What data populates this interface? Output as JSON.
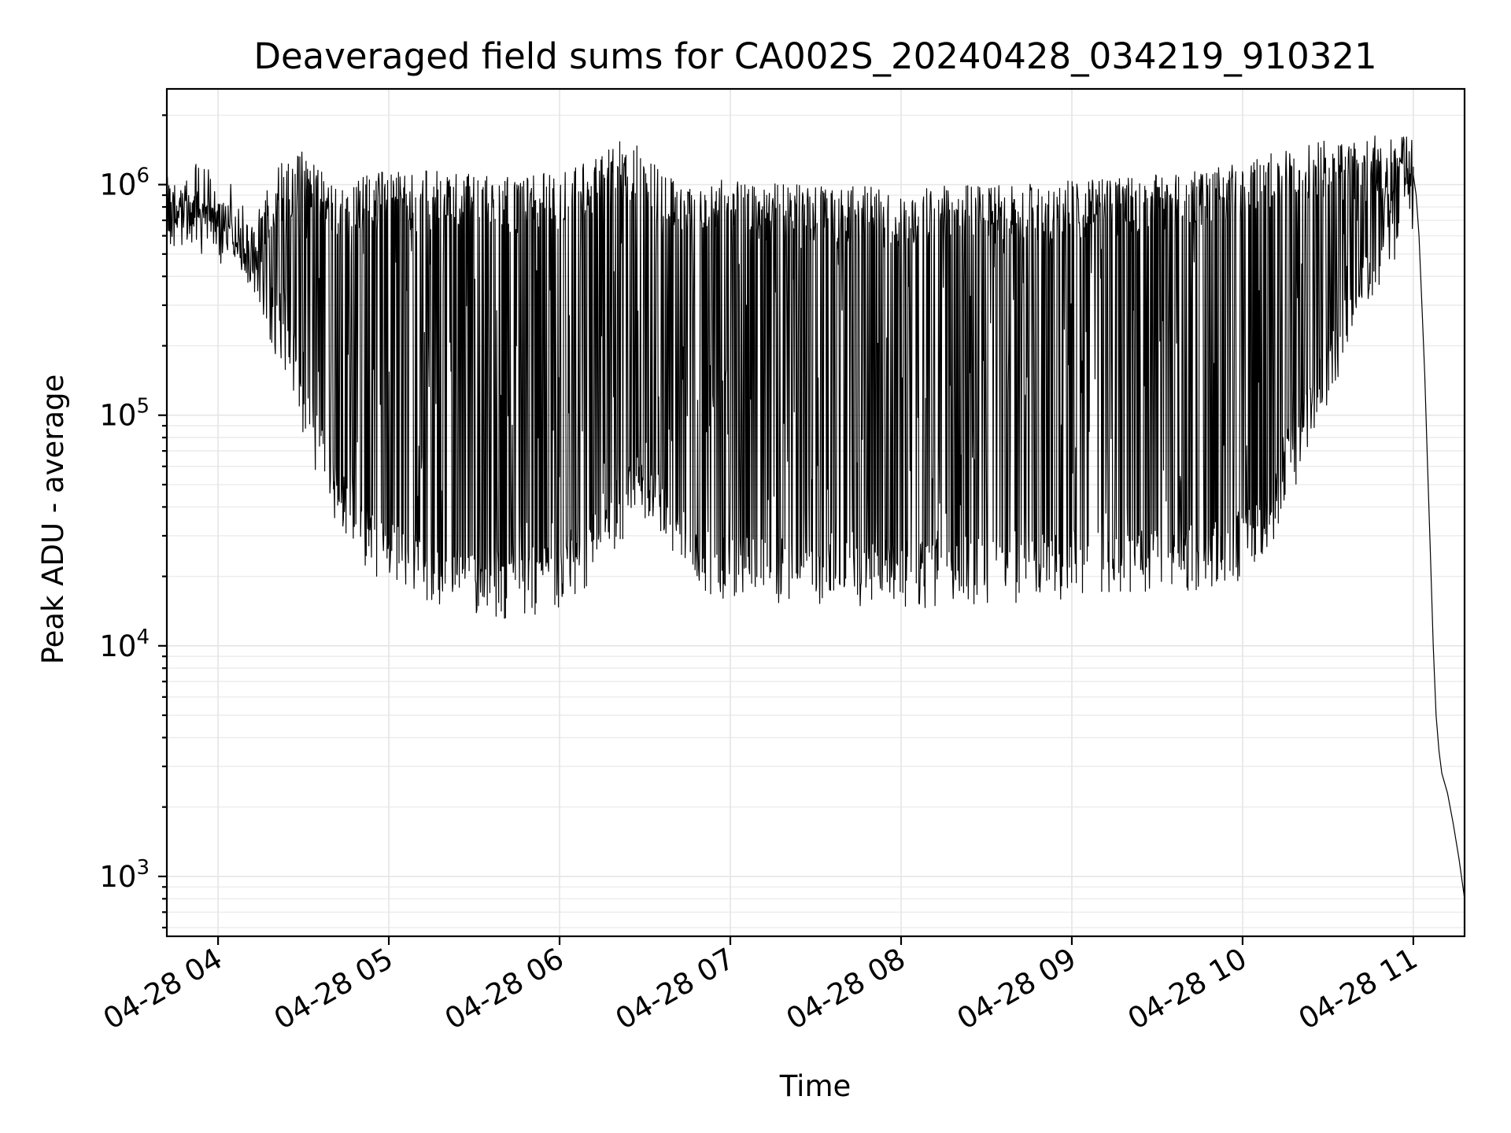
{
  "chart_data": {
    "type": "line",
    "title": "Deaveraged field sums for CA002S_20240428_034219_910321",
    "xlabel": "Time",
    "ylabel": "Peak ADU - average",
    "yscale": "log",
    "ylim": [
      550,
      2600000
    ],
    "xlim": [
      "2024-04-28T03:42",
      "2024-04-28T11:18"
    ],
    "grid": true,
    "grid_minor": true,
    "legend": "none",
    "x_ticks": [
      {
        "t": "2024-04-28T04:00",
        "label": "04-28 04"
      },
      {
        "t": "2024-04-28T05:00",
        "label": "04-28 05"
      },
      {
        "t": "2024-04-28T06:00",
        "label": "04-28 06"
      },
      {
        "t": "2024-04-28T07:00",
        "label": "04-28 07"
      },
      {
        "t": "2024-04-28T08:00",
        "label": "04-28 08"
      },
      {
        "t": "2024-04-28T09:00",
        "label": "04-28 09"
      },
      {
        "t": "2024-04-28T10:00",
        "label": "04-28 10"
      },
      {
        "t": "2024-04-28T11:00",
        "label": "04-28 11"
      }
    ],
    "y_ticks": [
      {
        "value": 1000,
        "base": "10",
        "exp": "3"
      },
      {
        "value": 10000,
        "base": "10",
        "exp": "4"
      },
      {
        "value": 100000,
        "base": "10",
        "exp": "5"
      },
      {
        "value": 1000000,
        "base": "10",
        "exp": "6"
      }
    ],
    "line_color": "#000000",
    "series": [
      {
        "envelope": {
          "x": [
            "2024-04-28T03:42",
            "2024-04-28T03:50",
            "2024-04-28T04:00",
            "2024-04-28T04:05",
            "2024-04-28T04:10",
            "2024-04-28T04:15",
            "2024-04-28T04:20",
            "2024-04-28T04:25",
            "2024-04-28T04:30",
            "2024-04-28T04:35",
            "2024-04-28T04:40",
            "2024-04-28T04:45",
            "2024-04-28T04:50",
            "2024-04-28T04:55",
            "2024-04-28T05:00",
            "2024-04-28T05:10",
            "2024-04-28T05:20",
            "2024-04-28T05:30",
            "2024-04-28T05:40",
            "2024-04-28T05:50",
            "2024-04-28T06:00",
            "2024-04-28T06:10",
            "2024-04-28T06:20",
            "2024-04-28T06:30",
            "2024-04-28T06:40",
            "2024-04-28T06:50",
            "2024-04-28T07:00",
            "2024-04-28T07:20",
            "2024-04-28T07:40",
            "2024-04-28T08:00",
            "2024-04-28T08:20",
            "2024-04-28T08:40",
            "2024-04-28T09:00",
            "2024-04-28T09:20",
            "2024-04-28T09:40",
            "2024-04-28T10:00",
            "2024-04-28T10:10",
            "2024-04-28T10:20",
            "2024-04-28T10:30",
            "2024-04-28T10:40",
            "2024-04-28T10:50",
            "2024-04-28T11:00"
          ],
          "high": [
            1000000,
            900000,
            850000,
            750000,
            650000,
            800000,
            1200000,
            1300000,
            1400000,
            1200000,
            1100000,
            1000000,
            1100000,
            1150000,
            1150000,
            1150000,
            1150000,
            1100000,
            1100000,
            1100000,
            1150000,
            1300000,
            1550000,
            1500000,
            1100000,
            1050000,
            1050000,
            1000000,
            1000000,
            950000,
            1000000,
            1000000,
            1050000,
            1100000,
            1150000,
            1250000,
            1400000,
            1500000,
            1550000,
            1600000,
            1650000,
            1600000
          ],
          "low": [
            600000,
            700000,
            650000,
            550000,
            420000,
            280000,
            200000,
            140000,
            90000,
            60000,
            40000,
            30000,
            24000,
            21000,
            19000,
            17000,
            16000,
            15000,
            14500,
            15000,
            16000,
            20000,
            30000,
            40000,
            25000,
            18000,
            17000,
            16500,
            16000,
            16000,
            16500,
            17000,
            17500,
            18000,
            19000,
            21000,
            30000,
            60000,
            120000,
            250000,
            450000,
            700000
          ]
        },
        "tail": {
          "x": [
            "2024-04-28T11:00",
            "2024-04-28T11:01",
            "2024-04-28T11:02",
            "2024-04-28T11:03",
            "2024-04-28T11:04",
            "2024-04-28T11:05",
            "2024-04-28T11:06",
            "2024-04-28T11:07",
            "2024-04-28T11:08",
            "2024-04-28T11:09",
            "2024-04-28T11:10",
            "2024-04-28T11:12",
            "2024-04-28T11:14",
            "2024-04-28T11:16",
            "2024-04-28T11:18"
          ],
          "y": [
            1100000,
            900000,
            600000,
            300000,
            150000,
            60000,
            25000,
            10000,
            5000,
            3500,
            2800,
            2300,
            1700,
            1200,
            800
          ]
        }
      }
    ]
  }
}
